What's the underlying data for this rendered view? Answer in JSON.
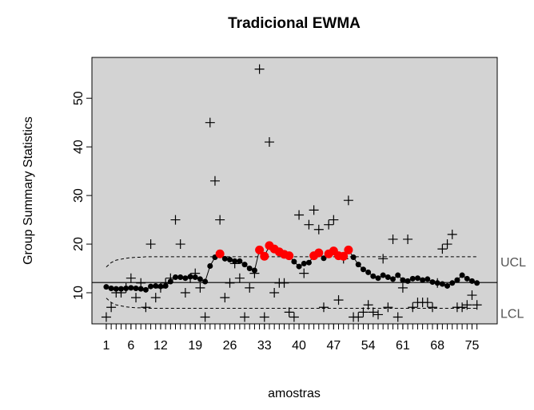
{
  "chart_data": {
    "type": "ewma",
    "title": "Tradicional EWMA",
    "xlabel": "amostras",
    "ylabel": "Group Summary Statistics",
    "x": [
      1,
      2,
      3,
      4,
      5,
      6,
      7,
      8,
      9,
      10,
      11,
      12,
      13,
      14,
      15,
      16,
      17,
      18,
      19,
      20,
      21,
      22,
      23,
      24,
      25,
      26,
      27,
      28,
      29,
      30,
      31,
      32,
      33,
      34,
      35,
      36,
      37,
      38,
      39,
      40,
      41,
      42,
      43,
      44,
      45,
      46,
      47,
      48,
      49,
      50,
      51,
      52,
      53,
      54,
      55,
      56,
      57,
      58,
      59,
      60,
      61,
      62,
      63,
      64,
      65,
      66,
      67,
      68,
      69,
      70,
      71,
      72,
      73,
      74,
      75,
      76
    ],
    "statistics": [
      5,
      7,
      10,
      10,
      11,
      13,
      9,
      12,
      7,
      20,
      9,
      11,
      12,
      13,
      25,
      20,
      10,
      13,
      14,
      11,
      5,
      45,
      33,
      25,
      9,
      12,
      16,
      13,
      5,
      11,
      14,
      56,
      5,
      41,
      10,
      12,
      12,
      6,
      5,
      26,
      14,
      24,
      27,
      23,
      7,
      24,
      25,
      8.5,
      17,
      29,
      5,
      5,
      6,
      7.5,
      6,
      5.5,
      17,
      7,
      21,
      5,
      11,
      21,
      7,
      8,
      8,
      8,
      7,
      12,
      19,
      20,
      22,
      7,
      7,
      7.5,
      9.5,
      7.5
    ],
    "ewma": [
      11.2,
      10.9,
      10.8,
      10.8,
      10.9,
      11.0,
      10.9,
      10.8,
      10.6,
      11.3,
      11.4,
      11.3,
      11.4,
      12.3,
      13.2,
      13.2,
      13.0,
      13.3,
      13.2,
      12.8,
      12.3,
      15.5,
      17.3,
      18.0,
      17.0,
      16.8,
      16.5,
      16.5,
      15.8,
      15.0,
      14.6,
      18.8,
      17.5,
      19.7,
      19.0,
      18.4,
      17.9,
      17.6,
      16.4,
      15.4,
      16.0,
      16.2,
      17.6,
      18.2,
      17.1,
      18.0,
      18.6,
      17.6,
      17.5,
      18.8,
      17.3,
      15.8,
      14.8,
      14.2,
      13.4,
      13.0,
      13.6,
      13.2,
      12.8,
      13.6,
      12.6,
      12.4,
      12.9,
      13.0,
      12.6,
      12.8,
      12.2,
      12.0,
      11.8,
      11.4,
      12.0,
      12.6,
      13.6,
      12.9,
      12.4,
      12.0
    ],
    "center": 12.1,
    "ucl": [
      15.3,
      16.2,
      16.7,
      16.9,
      17.1,
      17.2,
      17.3,
      17.3,
      17.4,
      17.4,
      17.4,
      17.4,
      17.4,
      17.4,
      17.4,
      17.4,
      17.4,
      17.4,
      17.4,
      17.4,
      17.4,
      17.4,
      17.4,
      17.4,
      17.4,
      17.4,
      17.4,
      17.4,
      17.4,
      17.4,
      17.4,
      17.4,
      17.4,
      17.4,
      17.4,
      17.4,
      17.4,
      17.4,
      17.4,
      17.4,
      17.4,
      17.4,
      17.4,
      17.4,
      17.4,
      17.4,
      17.4,
      17.4,
      17.4,
      17.4,
      17.4,
      17.4,
      17.4,
      17.4,
      17.4,
      17.4,
      17.4,
      17.4,
      17.4,
      17.4,
      17.4,
      17.4,
      17.4,
      17.4,
      17.4,
      17.4,
      17.4,
      17.4,
      17.4,
      17.4,
      17.4,
      17.4,
      17.4,
      17.4,
      17.4,
      17.4
    ],
    "lcl": [
      8.9,
      8.0,
      7.5,
      7.3,
      7.1,
      7.0,
      6.9,
      6.9,
      6.8,
      6.8,
      6.8,
      6.8,
      6.8,
      6.8,
      6.8,
      6.8,
      6.8,
      6.8,
      6.8,
      6.8,
      6.8,
      6.8,
      6.8,
      6.8,
      6.8,
      6.8,
      6.8,
      6.8,
      6.8,
      6.8,
      6.8,
      6.8,
      6.8,
      6.8,
      6.8,
      6.8,
      6.8,
      6.8,
      6.8,
      6.8,
      6.8,
      6.8,
      6.8,
      6.8,
      6.8,
      6.8,
      6.8,
      6.8,
      6.8,
      6.8,
      6.8,
      6.8,
      6.8,
      6.8,
      6.8,
      6.8,
      6.8,
      6.8,
      6.8,
      6.8,
      6.8,
      6.8,
      6.8,
      6.8,
      6.8,
      6.8,
      6.8,
      6.8,
      6.8,
      6.8,
      6.8,
      6.8,
      6.8,
      6.8,
      6.8,
      6.8
    ],
    "ucl_label": "UCL",
    "lcl_label": "LCL",
    "xlim": [
      -1.9,
      80.1
    ],
    "ylim": [
      3.6,
      58.4
    ],
    "xticks": [
      1,
      6,
      12,
      19,
      26,
      33,
      40,
      47,
      54,
      61,
      68,
      75
    ],
    "yticks": [
      10,
      20,
      30,
      40,
      50
    ],
    "background": "#d3d3d3",
    "color": "#000000",
    "violation_color": "#ff0000"
  }
}
